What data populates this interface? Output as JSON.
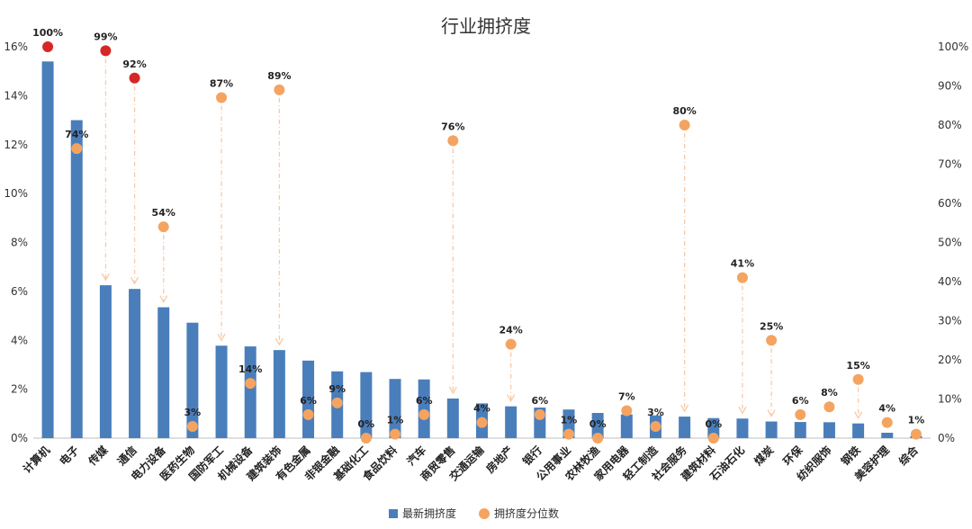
{
  "chart_data": {
    "type": "bar",
    "title": "行业拥挤度",
    "categories": [
      "计算机",
      "电子",
      "传媒",
      "通信",
      "电力设备",
      "医药生物",
      "国防军工",
      "机械设备",
      "建筑装饰",
      "有色金属",
      "非银金融",
      "基础化工",
      "食品饮料",
      "汽车",
      "商贸零售",
      "交通运输",
      "房地产",
      "银行",
      "公用事业",
      "农林牧渔",
      "家用电器",
      "轻工制造",
      "社会服务",
      "建筑材料",
      "石油石化",
      "煤炭",
      "环保",
      "纺织服饰",
      "钢铁",
      "美容护理",
      "综合"
    ],
    "series": [
      {
        "name": "最新拥挤度",
        "type": "bar",
        "axis": "left",
        "color": "#4a7ebb",
        "values": [
          15.4,
          13.0,
          6.25,
          6.1,
          5.35,
          4.72,
          3.78,
          3.75,
          3.6,
          3.17,
          2.73,
          2.7,
          2.42,
          2.4,
          1.62,
          1.42,
          1.3,
          1.25,
          1.17,
          1.03,
          0.97,
          0.93,
          0.88,
          0.82,
          0.8,
          0.68,
          0.66,
          0.65,
          0.6,
          0.22,
          0.08
        ]
      },
      {
        "name": "拥挤度分位数",
        "type": "scatter",
        "axis": "right",
        "color": "#f4a460",
        "highlight_color": "#d62728",
        "highlight_threshold": 90,
        "values": [
          100,
          74,
          99,
          92,
          54,
          3,
          87,
          14,
          89,
          6,
          9,
          0,
          1,
          6,
          76,
          4,
          24,
          6,
          1,
          0,
          7,
          3,
          80,
          0,
          41,
          25,
          6,
          8,
          15,
          4,
          1
        ],
        "labels": [
          "100%",
          "74%",
          "99%",
          "92%",
          "54%",
          "3%",
          "87%",
          "14%",
          "89%",
          "6%",
          "9%",
          "0%",
          "1%",
          "6%",
          "76%",
          "4%",
          "24%",
          "6%",
          "1%",
          "0%",
          "7%",
          "3%",
          "80%",
          "0%",
          "41%",
          "25%",
          "6%",
          "8%",
          "15%",
          "4%",
          "1%"
        ]
      }
    ],
    "arrows_from_to": [
      [
        2,
        99,
        6.25
      ],
      [
        3,
        92,
        6.1
      ],
      [
        4,
        54,
        5.35
      ],
      [
        6,
        87,
        3.78
      ],
      [
        8,
        89,
        3.6
      ],
      [
        14,
        76,
        1.62
      ],
      [
        16,
        24,
        1.3
      ],
      [
        22,
        80,
        0.88
      ],
      [
        24,
        41,
        0.8
      ],
      [
        25,
        25,
        0.68
      ],
      [
        28,
        15,
        0.6
      ]
    ],
    "y_left": {
      "min": 0,
      "max": 16,
      "step": 2,
      "tick_labels": [
        "0%",
        "2%",
        "4%",
        "6%",
        "8%",
        "10%",
        "12%",
        "14%",
        "16%"
      ]
    },
    "y_right": {
      "min": 0,
      "max": 100,
      "step": 10,
      "tick_labels": [
        "0%",
        "10%",
        "20%",
        "30%",
        "40%",
        "50%",
        "60%",
        "70%",
        "80%",
        "90%",
        "100%"
      ]
    },
    "legend": {
      "position": "bottom-center",
      "items": [
        "最新拥挤度",
        "拥挤度分位数"
      ]
    },
    "grid": false,
    "arrow_color": "#f8c9a6"
  }
}
